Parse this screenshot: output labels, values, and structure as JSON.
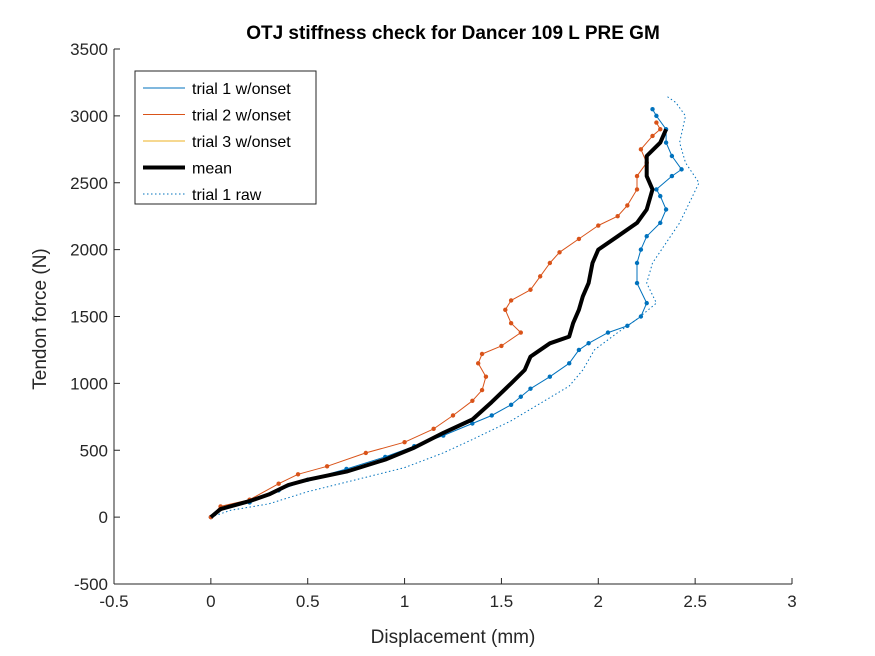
{
  "chart_data": {
    "type": "line",
    "title": "OTJ stiffness check for Dancer 109 L PRE GM",
    "xlabel": "Displacement (mm)",
    "ylabel": "Tendon force (N)",
    "xlim": [
      -0.5,
      3
    ],
    "ylim": [
      -500,
      3500
    ],
    "xticks": [
      "-0.5",
      "0",
      "0.5",
      "1",
      "1.5",
      "2",
      "2.5",
      "3"
    ],
    "yticks": [
      "-500",
      "0",
      "500",
      "1000",
      "1500",
      "2000",
      "2500",
      "3000",
      "3500"
    ],
    "grid": false,
    "legend_position": "top-left",
    "series": [
      {
        "name": "trial 1 w/onset",
        "color": "#0072BD",
        "style": "solid-with-dots",
        "x": [
          0,
          0.05,
          0.2,
          0.35,
          0.5,
          0.7,
          0.9,
          1.05,
          1.2,
          1.35,
          1.45,
          1.55,
          1.6,
          1.65,
          1.75,
          1.85,
          1.9,
          1.95,
          2.05,
          2.15,
          2.22,
          2.25,
          2.2,
          2.2,
          2.22,
          2.25,
          2.32,
          2.35,
          2.32,
          2.3,
          2.38,
          2.43,
          2.38,
          2.35,
          2.35,
          2.3,
          2.28
        ],
        "y": [
          0,
          60,
          110,
          200,
          280,
          360,
          450,
          530,
          610,
          700,
          760,
          840,
          900,
          960,
          1050,
          1150,
          1250,
          1300,
          1380,
          1430,
          1500,
          1600,
          1750,
          1900,
          2000,
          2100,
          2200,
          2300,
          2400,
          2450,
          2550,
          2600,
          2700,
          2800,
          2900,
          3000,
          3050
        ]
      },
      {
        "name": "trial 2 w/onset",
        "color": "#D95319",
        "style": "solid-with-dots",
        "x": [
          0,
          0.05,
          0.2,
          0.35,
          0.45,
          0.6,
          0.8,
          1.0,
          1.15,
          1.25,
          1.35,
          1.4,
          1.42,
          1.38,
          1.4,
          1.5,
          1.6,
          1.55,
          1.52,
          1.55,
          1.65,
          1.7,
          1.75,
          1.8,
          1.9,
          2.0,
          2.1,
          2.15,
          2.2,
          2.2,
          2.25,
          2.22,
          2.28,
          2.32,
          2.3
        ],
        "y": [
          0,
          80,
          130,
          250,
          320,
          380,
          480,
          560,
          660,
          760,
          870,
          950,
          1050,
          1150,
          1220,
          1280,
          1380,
          1450,
          1550,
          1620,
          1700,
          1800,
          1900,
          1980,
          2080,
          2180,
          2250,
          2330,
          2450,
          2550,
          2650,
          2750,
          2850,
          2900,
          2950
        ]
      },
      {
        "name": "trial 3 w/onset",
        "color": "#EDB120",
        "style": "solid",
        "x": [],
        "y": []
      },
      {
        "name": "mean",
        "color": "#000000",
        "style": "thick",
        "x": [
          0,
          0.05,
          0.2,
          0.3,
          0.4,
          0.5,
          0.7,
          0.9,
          1.05,
          1.2,
          1.35,
          1.45,
          1.55,
          1.62,
          1.65,
          1.75,
          1.85,
          1.87,
          1.9,
          1.92,
          1.95,
          1.97,
          2.0,
          2.1,
          2.2,
          2.25,
          2.28,
          2.25,
          2.25,
          2.32,
          2.35
        ],
        "y": [
          0,
          60,
          120,
          170,
          240,
          280,
          340,
          430,
          520,
          630,
          730,
          860,
          1000,
          1100,
          1200,
          1300,
          1350,
          1450,
          1550,
          1650,
          1750,
          1900,
          2000,
          2100,
          2200,
          2300,
          2450,
          2550,
          2700,
          2800,
          2900
        ]
      },
      {
        "name": "trial 1 raw",
        "color": "#0072BD",
        "style": "dotted",
        "x": [
          0,
          0.1,
          0.3,
          0.5,
          0.75,
          1.0,
          1.2,
          1.35,
          1.55,
          1.7,
          1.85,
          1.92,
          1.98,
          2.1,
          2.2,
          2.3,
          2.25,
          2.28,
          2.35,
          2.42,
          2.48,
          2.52,
          2.45,
          2.42,
          2.45,
          2.4,
          2.35
        ],
        "y": [
          0,
          50,
          100,
          190,
          280,
          370,
          480,
          580,
          720,
          850,
          980,
          1100,
          1250,
          1380,
          1480,
          1600,
          1750,
          1900,
          2050,
          2200,
          2380,
          2500,
          2650,
          2800,
          3000,
          3100,
          3150
        ]
      }
    ]
  }
}
